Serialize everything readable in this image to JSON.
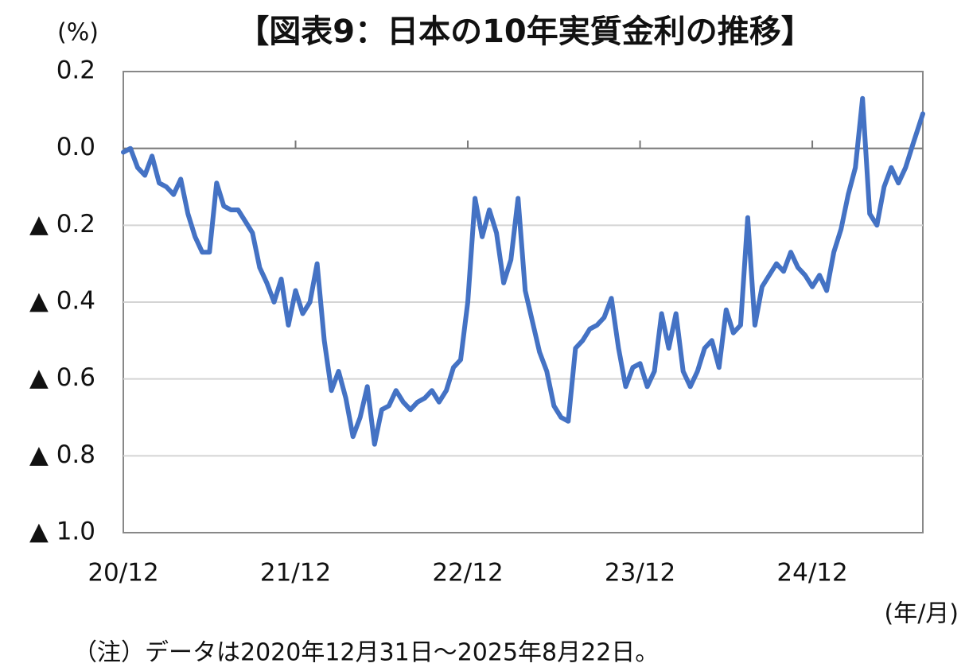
{
  "chart_data": {
    "type": "line",
    "title": "【図表9：日本の10年実質金利の推移】",
    "y_unit": "(%)",
    "x_unit": "(年/月)",
    "note": "（注）データは2020年12月31日～2025年8月22日。",
    "x": [
      0,
      0.5,
      1,
      1.5,
      2,
      2.5,
      3,
      3.5,
      4,
      4.5,
      5,
      5.5,
      6,
      6.5,
      7,
      7.5,
      8,
      8.5,
      9,
      9.5,
      10,
      10.5,
      11,
      11.5,
      12,
      12.5,
      13,
      13.5,
      14,
      14.5,
      15,
      15.5,
      16,
      16.5,
      17,
      17.5,
      18,
      18.5,
      19,
      19.5,
      20,
      20.5,
      21,
      21.5,
      22,
      22.5,
      23,
      23.5,
      24,
      24.5,
      25,
      25.5,
      26,
      26.5,
      27,
      27.5,
      28,
      28.5,
      29,
      29.5,
      30,
      30.5,
      31,
      31.5,
      32,
      32.5,
      33,
      33.5,
      34,
      34.5,
      35,
      35.5,
      36,
      36.5,
      37,
      37.5,
      38,
      38.5,
      39,
      39.5,
      40,
      40.5,
      41,
      41.5,
      42,
      42.5,
      43,
      43.5,
      44,
      44.5,
      45,
      45.5,
      46,
      46.5,
      47,
      47.5,
      48,
      48.5,
      49,
      49.5,
      50,
      50.5,
      51,
      51.5,
      52,
      52.5,
      53,
      53.5,
      54,
      54.5,
      55,
      55.7
    ],
    "series": [
      {
        "name": "日本の10年実質金利",
        "color": "#4472c4",
        "values": [
          -0.01,
          0.0,
          -0.05,
          -0.07,
          -0.02,
          -0.09,
          -0.1,
          -0.12,
          -0.08,
          -0.17,
          -0.23,
          -0.27,
          -0.27,
          -0.09,
          -0.15,
          -0.16,
          -0.16,
          -0.19,
          -0.22,
          -0.31,
          -0.35,
          -0.4,
          -0.34,
          -0.46,
          -0.37,
          -0.43,
          -0.4,
          -0.3,
          -0.5,
          -0.63,
          -0.58,
          -0.65,
          -0.75,
          -0.7,
          -0.62,
          -0.77,
          -0.68,
          -0.67,
          -0.63,
          -0.66,
          -0.68,
          -0.66,
          -0.65,
          -0.63,
          -0.66,
          -0.63,
          -0.57,
          -0.55,
          -0.4,
          -0.13,
          -0.23,
          -0.16,
          -0.22,
          -0.35,
          -0.29,
          -0.13,
          -0.37,
          -0.45,
          -0.53,
          -0.58,
          -0.67,
          -0.7,
          -0.71,
          -0.52,
          -0.5,
          -0.47,
          -0.46,
          -0.44,
          -0.39,
          -0.52,
          -0.62,
          -0.57,
          -0.56,
          -0.62,
          -0.58,
          -0.43,
          -0.52,
          -0.43,
          -0.58,
          -0.62,
          -0.58,
          -0.52,
          -0.5,
          -0.57,
          -0.42,
          -0.48,
          -0.46,
          -0.18,
          -0.46,
          -0.36,
          -0.33,
          -0.3,
          -0.32,
          -0.27,
          -0.31,
          -0.33,
          -0.36,
          -0.33,
          -0.37,
          -0.27,
          -0.21,
          -0.12,
          -0.05,
          0.13,
          -0.17,
          -0.2,
          -0.1,
          -0.05,
          -0.09,
          -0.05,
          0.01,
          0.09
        ]
      }
    ],
    "xlim": [
      0,
      55.7
    ],
    "xticks": [
      {
        "value": 0,
        "label": "20/12"
      },
      {
        "value": 12,
        "label": "21/12"
      },
      {
        "value": 24,
        "label": "22/12"
      },
      {
        "value": 36,
        "label": "23/12"
      },
      {
        "value": 48,
        "label": "24/12"
      }
    ],
    "ylim": [
      -1.0,
      0.2
    ],
    "yticks": [
      {
        "value": -1.0,
        "label": "▲ 1.0"
      },
      {
        "value": -0.8,
        "label": "▲ 0.8"
      },
      {
        "value": -0.6,
        "label": "▲ 0.6"
      },
      {
        "value": -0.4,
        "label": "▲ 0.4"
      },
      {
        "value": -0.2,
        "label": "▲ 0.2"
      },
      {
        "value": 0,
        "label": "0.0"
      },
      0.2
    ],
    "grid": true
  }
}
